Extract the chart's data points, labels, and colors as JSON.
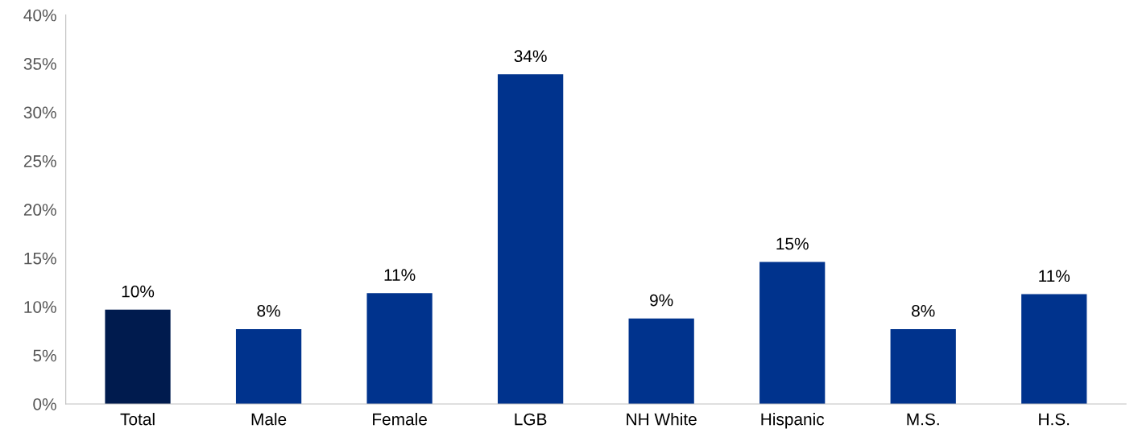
{
  "chart_data": {
    "type": "bar",
    "categories": [
      "Total",
      "Male",
      "Female",
      "LGB",
      "NH White",
      "Hispanic",
      "M.S.",
      "H.S."
    ],
    "values": [
      9.7,
      7.7,
      11.4,
      33.9,
      8.8,
      14.6,
      7.7,
      11.3
    ],
    "value_labels": [
      "10%",
      "8%",
      "11%",
      "34%",
      "9%",
      "15%",
      "8%",
      "11%"
    ],
    "colors": [
      "#001b4e",
      "#00338d",
      "#00338d",
      "#00338d",
      "#00338d",
      "#00338d",
      "#00338d",
      "#00338d"
    ],
    "ylim": [
      0,
      40
    ],
    "yticks": [
      {
        "value": 0,
        "label": "0%"
      },
      {
        "value": 5,
        "label": "5%"
      },
      {
        "value": 10,
        "label": "10%"
      },
      {
        "value": 15,
        "label": "15%"
      },
      {
        "value": 20,
        "label": "20%"
      },
      {
        "value": 25,
        "label": "25%"
      },
      {
        "value": 30,
        "label": "30%"
      },
      {
        "value": 35,
        "label": "35%"
      },
      {
        "value": 40,
        "label": "40%"
      }
    ],
    "grid": false,
    "legend": false
  }
}
